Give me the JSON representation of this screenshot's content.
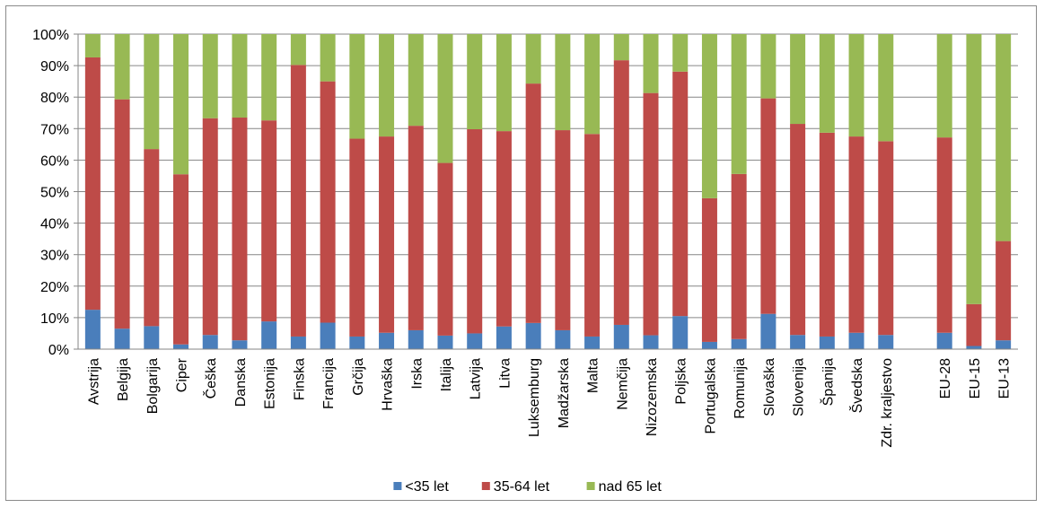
{
  "chart_data": {
    "type": "bar",
    "stacked": true,
    "categories": [
      "Avstrija",
      "Belgija",
      "Bolgarija",
      "Ciper",
      "Češka",
      "Danska",
      "Estonija",
      "Finska",
      "Francija",
      "Grčija",
      "Hrvaška",
      "Irska",
      "Italija",
      "Latvija",
      "Litva",
      "Luksemburg",
      "Madžarska",
      "Malta",
      "Nemčija",
      "Nizozemska",
      "Poljska",
      "Portugalska",
      "Romunija",
      "Slovaška",
      "Slovenija",
      "Španija",
      "Švedska",
      "Zdr. kraljestvo",
      "",
      "EU-28",
      "EU-15",
      "EU-13"
    ],
    "series": [
      {
        "name": "<35 let",
        "color": "#4a7ebb",
        "values": [
          12.5,
          6.5,
          7.3,
          1.5,
          4.5,
          2.8,
          8.8,
          4.0,
          8.4,
          4.0,
          5.2,
          6.0,
          4.3,
          5.0,
          7.2,
          8.3,
          6.0,
          4.0,
          7.7,
          4.4,
          10.5,
          2.3,
          3.2,
          11.2,
          4.5,
          4.0,
          5.2,
          4.5,
          null,
          5.2,
          1.0,
          2.8
        ]
      },
      {
        "name": "35-64 let",
        "color": "#be4b48",
        "values": [
          80.1,
          72.8,
          56.2,
          54.0,
          68.8,
          70.7,
          63.8,
          86.2,
          76.6,
          62.8,
          62.3,
          64.9,
          54.8,
          64.8,
          62.0,
          76.0,
          63.5,
          64.3,
          84.0,
          76.9,
          77.6,
          45.6,
          52.4,
          68.4,
          67.0,
          64.7,
          62.3,
          61.5,
          null,
          62.0,
          13.3,
          31.5
        ]
      },
      {
        "name": "nad 65 let",
        "color": "#98b954",
        "values": [
          7.4,
          20.7,
          36.5,
          44.5,
          26.7,
          26.5,
          27.4,
          9.8,
          15.0,
          33.2,
          32.5,
          29.1,
          40.9,
          30.2,
          30.8,
          15.7,
          30.5,
          31.7,
          8.3,
          18.7,
          11.9,
          52.1,
          44.4,
          20.4,
          28.5,
          31.3,
          32.5,
          34.0,
          null,
          32.8,
          85.7,
          65.7
        ]
      }
    ],
    "y_ticks": [
      "0%",
      "10%",
      "20%",
      "30%",
      "40%",
      "50%",
      "60%",
      "70%",
      "80%",
      "90%",
      "100%"
    ],
    "ylim": [
      0,
      100
    ],
    "grid": true,
    "legend_position": "bottom",
    "title": "",
    "xlabel": "",
    "ylabel": ""
  }
}
